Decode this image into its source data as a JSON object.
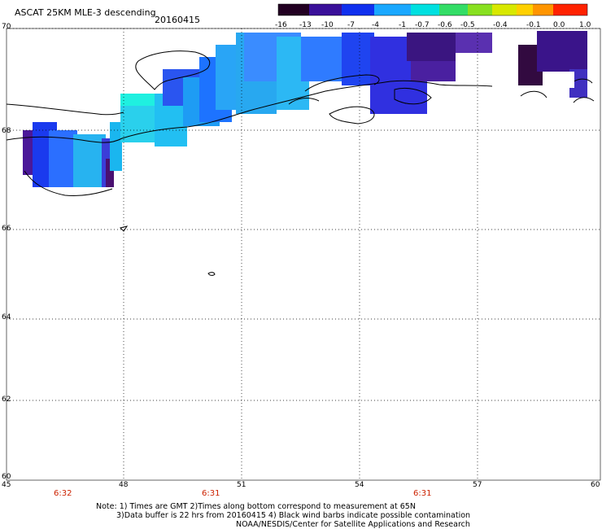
{
  "title": "ASCAT 25KM MLE-3 descending",
  "date": "20160415",
  "colorbar": {
    "labels": [
      "-16",
      "-13",
      "-10",
      "-7",
      "-4",
      "-1",
      "-0.7",
      "-0.6",
      "-0.5",
      "-0.4",
      "-0.1",
      "0.0",
      "1.0"
    ]
  },
  "axes": {
    "lat_labels": [
      "70",
      "68",
      "66",
      "64",
      "62",
      "60"
    ],
    "lon_labels": [
      "45",
      "48",
      "51",
      "54",
      "57",
      "60"
    ]
  },
  "times": [
    "6:32",
    "6:31",
    "6:31"
  ],
  "notes": {
    "line1": "Note: 1) Times are GMT 2)Times along bottom correspond to measurement at 65N",
    "line2": "3)Data buffer is 22 hrs from 20160415 4) Black wind barbs indicate possible contamination",
    "line3": "NOAA/NESDIS/Center for Satellite Applications and Research"
  }
}
